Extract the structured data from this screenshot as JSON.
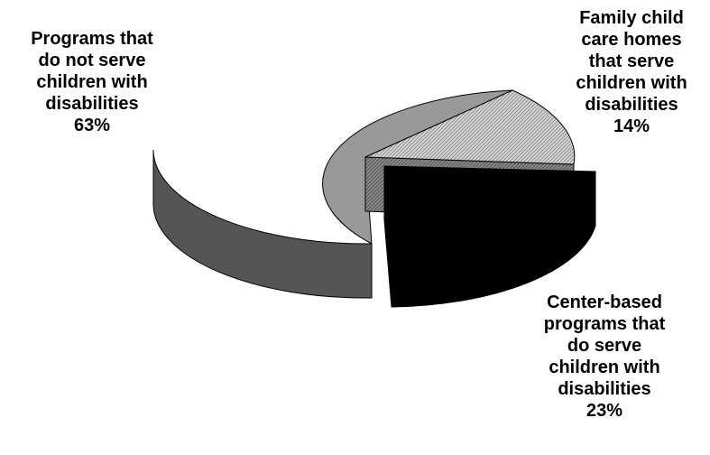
{
  "chart_data": {
    "type": "pie",
    "three_d": true,
    "exploded_slice": "Center-based programs that do serve children with disabilities",
    "slices": [
      {
        "label_lines": [
          "Programs that",
          "do not serve",
          "children with",
          "disabilities"
        ],
        "percent_label": "63%",
        "value": 63,
        "color": "#999999",
        "pattern": "solid"
      },
      {
        "label_lines": [
          "Family child",
          "care homes",
          "that serve",
          "children with",
          "disabilities"
        ],
        "percent_label": "14%",
        "value": 14,
        "color": "#cccccc",
        "pattern": "diagonal-hatch"
      },
      {
        "label_lines": [
          "Center-based",
          "programs that",
          "do serve",
          "children with",
          "disabilities"
        ],
        "percent_label": "23%",
        "value": 23,
        "color": "#000000",
        "pattern": "solid"
      }
    ]
  }
}
